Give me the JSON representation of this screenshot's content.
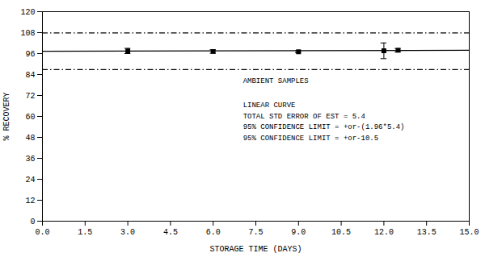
{
  "chart_data": {
    "type": "scatter",
    "xlabel": "STORAGE TIME (DAYS)",
    "ylabel": "% RECOVERY",
    "xlim": [
      0.0,
      15.0
    ],
    "ylim": [
      0,
      120
    ],
    "xticks": [
      {
        "value": 0.0,
        "label": "0.0"
      },
      1.5,
      {
        "value": 3.0,
        "label": "3.0"
      },
      4.5,
      {
        "value": 6.0,
        "label": "6.0"
      },
      7.5,
      {
        "value": 9.0,
        "label": "9.0"
      },
      10.5,
      {
        "value": 12.0,
        "label": "12.0"
      },
      13.5,
      {
        "value": 15.0,
        "label": "15.0"
      }
    ],
    "yticks": [
      0,
      12,
      24,
      36,
      48,
      60,
      72,
      84,
      96,
      108,
      120
    ],
    "grid": false,
    "series": [
      {
        "type": "line",
        "x": [
          0.0,
          15.0
        ],
        "values": [
          97.3,
          97.9
        ],
        "color": "#000000",
        "line_style": "solid"
      },
      {
        "type": "hline",
        "values": [
          107.8
        ],
        "color": "#000000",
        "line_style": "dashdot"
      },
      {
        "type": "hline",
        "values": [
          86.8
        ],
        "color": "#000000",
        "line_style": "dashdot"
      },
      {
        "type": "scatter",
        "x": [
          3.0,
          6.0,
          9.0,
          12.0,
          12.5
        ],
        "values": [
          97.5,
          97.2,
          97.0,
          97.6,
          97.9
        ],
        "yerr": [
          1.5,
          1.0,
          0.5,
          4.5,
          1.0
        ],
        "color": "#000000",
        "marker": "square"
      }
    ],
    "annotations": [
      "AMBIENT SAMPLES",
      "LINEAR CURVE",
      "TOTAL STD ERROR OF EST = 5.4",
      "95% CONFIDENCE LIMIT = +or-(1.96*5.4)",
      "95% CONFIDENCE LIMIT = +or-10.5"
    ]
  }
}
